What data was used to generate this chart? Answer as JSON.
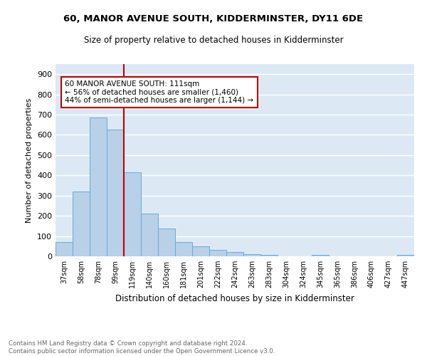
{
  "title1": "60, MANOR AVENUE SOUTH, KIDDERMINSTER, DY11 6DE",
  "title2": "Size of property relative to detached houses in Kidderminster",
  "xlabel": "Distribution of detached houses by size in Kidderminster",
  "ylabel": "Number of detached properties",
  "categories": [
    "37sqm",
    "58sqm",
    "78sqm",
    "99sqm",
    "119sqm",
    "140sqm",
    "160sqm",
    "181sqm",
    "201sqm",
    "222sqm",
    "242sqm",
    "263sqm",
    "283sqm",
    "304sqm",
    "324sqm",
    "345sqm",
    "365sqm",
    "386sqm",
    "406sqm",
    "427sqm",
    "447sqm"
  ],
  "values": [
    70,
    320,
    685,
    625,
    415,
    210,
    137,
    70,
    48,
    33,
    22,
    12,
    8,
    0,
    0,
    7,
    0,
    0,
    0,
    0,
    8
  ],
  "bar_color": "#b8d0e8",
  "bar_edge_color": "#6aaad4",
  "vline_color": "#c00000",
  "annotation_text": "60 MANOR AVENUE SOUTH: 111sqm\n← 56% of detached houses are smaller (1,460)\n44% of semi-detached houses are larger (1,144) →",
  "annotation_box_color": "#ffffff",
  "annotation_box_edge": "#c00000",
  "ylim": [
    0,
    950
  ],
  "yticks": [
    0,
    100,
    200,
    300,
    400,
    500,
    600,
    700,
    800,
    900
  ],
  "footer": "Contains HM Land Registry data © Crown copyright and database right 2024.\nContains public sector information licensed under the Open Government Licence v3.0.",
  "bg_color": "#dce9f5",
  "plot_bg": "#dce9f5"
}
